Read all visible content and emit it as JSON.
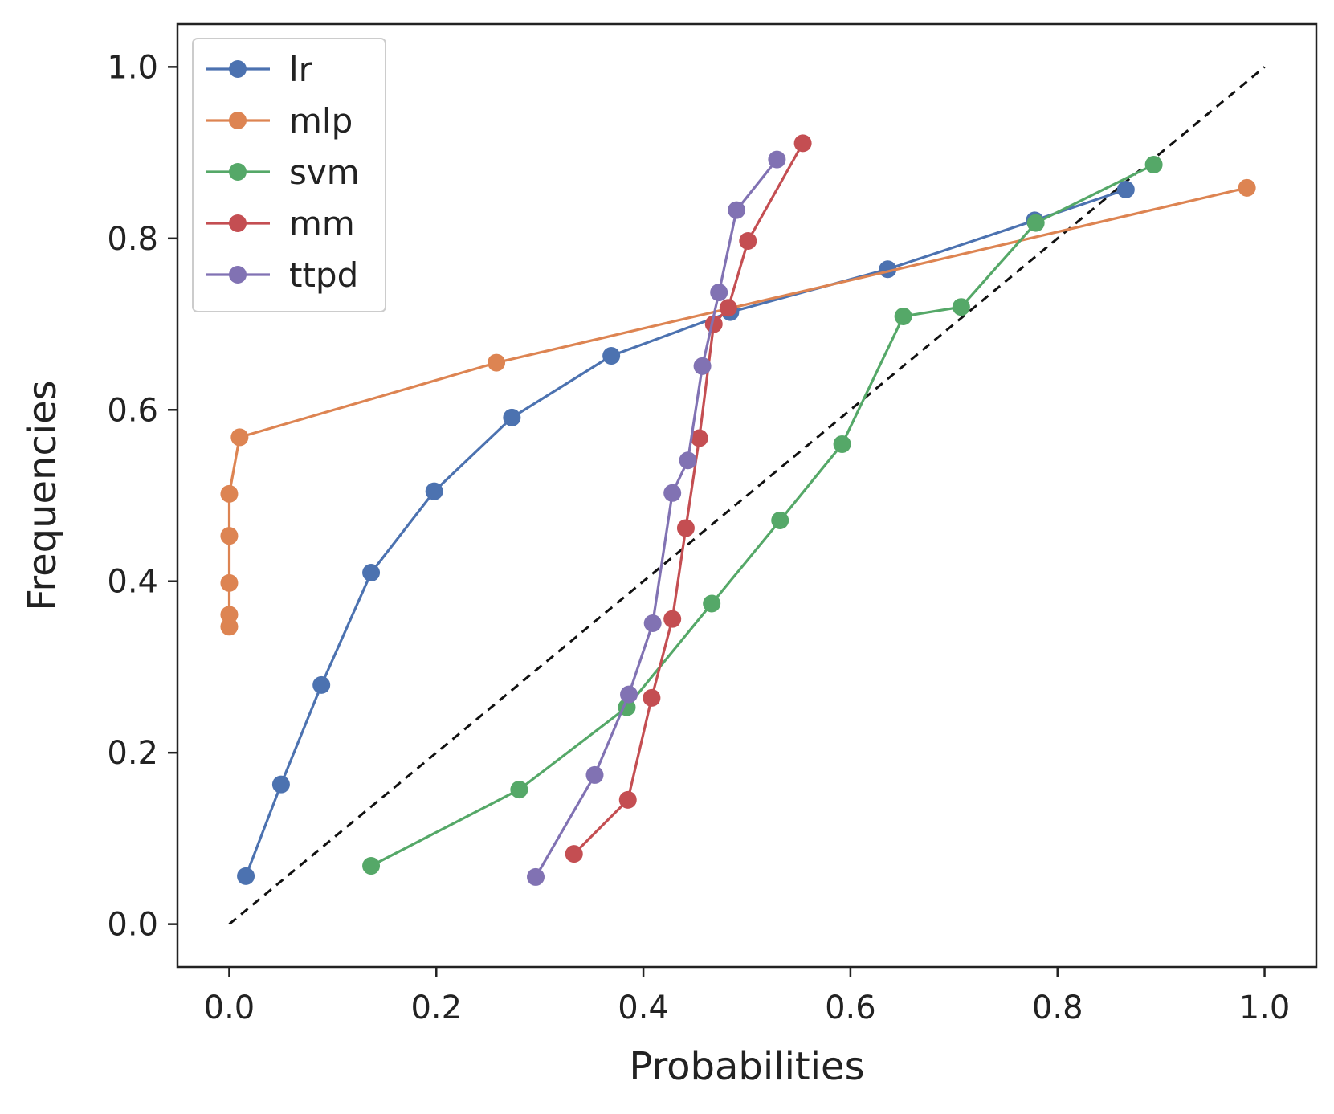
{
  "chart_data": {
    "type": "line",
    "title": "",
    "xlabel": "Probabilities",
    "ylabel": "Frequencies",
    "xlim": [
      -0.05,
      1.05
    ],
    "ylim": [
      -0.05,
      1.05
    ],
    "xticks": [
      0.0,
      0.2,
      0.4,
      0.6,
      0.8,
      1.0
    ],
    "yticks": [
      0.0,
      0.2,
      0.4,
      0.6,
      0.8,
      1.0
    ],
    "xtick_labels": [
      "0.0",
      "0.2",
      "0.4",
      "0.6",
      "0.8",
      "1.0"
    ],
    "ytick_labels": [
      "0.0",
      "0.2",
      "0.4",
      "0.6",
      "0.8",
      "1.0"
    ],
    "legend_position": "top-left",
    "reference_line": {
      "name": "perfect calibration",
      "x": [
        0,
        1
      ],
      "y": [
        0,
        1
      ],
      "style": "dashed",
      "color": "#111111"
    },
    "series": [
      {
        "name": "lr",
        "color": "#4c72b0",
        "x": [
          0.016,
          0.05,
          0.089,
          0.137,
          0.198,
          0.273,
          0.369,
          0.484,
          0.636,
          0.778,
          0.866
        ],
        "y": [
          0.056,
          0.163,
          0.279,
          0.41,
          0.505,
          0.591,
          0.663,
          0.714,
          0.764,
          0.821,
          0.857
        ]
      },
      {
        "name": "mlp",
        "color": "#dd8452",
        "x": [
          0.0,
          0.0,
          0.0,
          0.0,
          0.0,
          0.01,
          0.258,
          0.983
        ],
        "y": [
          0.347,
          0.361,
          0.398,
          0.453,
          0.502,
          0.568,
          0.655,
          0.859
        ]
      },
      {
        "name": "svm",
        "color": "#55a868",
        "x": [
          0.137,
          0.28,
          0.384,
          0.466,
          0.532,
          0.592,
          0.651,
          0.707,
          0.779,
          0.893
        ],
        "y": [
          0.068,
          0.157,
          0.253,
          0.374,
          0.471,
          0.56,
          0.709,
          0.72,
          0.818,
          0.886
        ]
      },
      {
        "name": "mm",
        "color": "#c44e52",
        "x": [
          0.333,
          0.385,
          0.408,
          0.428,
          0.441,
          0.454,
          0.468,
          0.482,
          0.501,
          0.554
        ],
        "y": [
          0.082,
          0.145,
          0.264,
          0.356,
          0.462,
          0.567,
          0.7,
          0.719,
          0.797,
          0.911
        ]
      },
      {
        "name": "ttpd",
        "color": "#8172b3",
        "x": [
          0.296,
          0.353,
          0.386,
          0.409,
          0.428,
          0.443,
          0.457,
          0.473,
          0.49,
          0.529
        ],
        "y": [
          0.055,
          0.174,
          0.268,
          0.351,
          0.503,
          0.541,
          0.651,
          0.737,
          0.833,
          0.892
        ]
      }
    ]
  }
}
